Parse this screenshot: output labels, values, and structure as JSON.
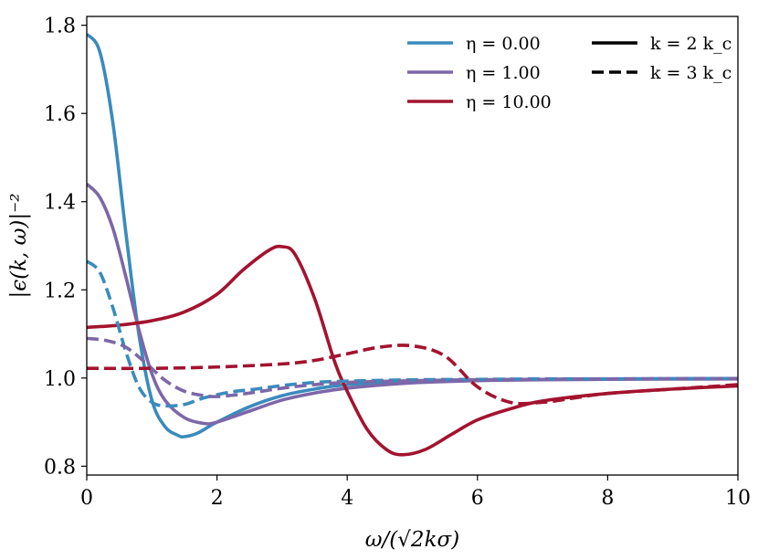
{
  "chart_data": {
    "type": "line",
    "title": "",
    "xlabel": "ω/(√2kσ)",
    "ylabel": "|ϵ(k, ω)|⁻²",
    "xlim": [
      0,
      10
    ],
    "ylim": [
      0.78,
      1.82
    ],
    "xticks": [
      0,
      2,
      4,
      6,
      8,
      10
    ],
    "xtick_labels": [
      "0",
      "2",
      "4",
      "6",
      "8",
      "10"
    ],
    "yticks": [
      0.8,
      1.0,
      1.2,
      1.4,
      1.6,
      1.8
    ],
    "ytick_labels": [
      "0.8",
      "1.0",
      "1.2",
      "1.4",
      "1.6",
      "1.8"
    ],
    "grid": false,
    "legend": {
      "placement": "top-right",
      "eta_entries": [
        {
          "label": "η = 0.00",
          "color": "#3a8bbd"
        },
        {
          "label": "η = 1.00",
          "color": "#7c67a8"
        },
        {
          "label": "η = 10.00",
          "color": "#a3132f"
        }
      ],
      "k_entries": [
        {
          "label": "k = 2 k_c",
          "style": "solid"
        },
        {
          "label": "k = 3 k_c",
          "style": "dashed"
        }
      ]
    },
    "series": [
      {
        "name": "η = 0.00, k = 2 k_c",
        "color": "#3a8bbd",
        "style": "solid",
        "x": [
          0,
          0.2,
          0.4,
          0.6,
          0.8,
          1.0,
          1.2,
          1.4,
          1.5,
          1.7,
          2.0,
          2.5,
          3.0,
          3.5,
          4.0,
          5.0,
          6.0,
          7.0,
          8.0,
          10.0
        ],
        "y": [
          1.78,
          1.74,
          1.58,
          1.33,
          1.1,
          0.95,
          0.89,
          0.87,
          0.867,
          0.875,
          0.9,
          0.935,
          0.96,
          0.975,
          0.985,
          0.993,
          0.996,
          0.997,
          0.998,
          0.999
        ]
      },
      {
        "name": "η = 1.00, k = 2 k_c",
        "color": "#7c67a8",
        "style": "solid",
        "x": [
          0,
          0.2,
          0.4,
          0.6,
          0.8,
          1.0,
          1.2,
          1.5,
          1.8,
          2.0,
          2.5,
          3.0,
          3.5,
          4.0,
          5.0,
          6.0,
          7.0,
          8.0,
          10.0
        ],
        "y": [
          1.44,
          1.41,
          1.34,
          1.23,
          1.11,
          1.01,
          0.95,
          0.91,
          0.897,
          0.9,
          0.925,
          0.95,
          0.966,
          0.977,
          0.989,
          0.994,
          0.996,
          0.997,
          0.998
        ]
      },
      {
        "name": "η = 10.00, k = 2 k_c",
        "color": "#a3132f",
        "style": "solid",
        "x": [
          0,
          0.5,
          1.0,
          1.5,
          2.0,
          2.4,
          2.8,
          3.0,
          3.2,
          3.5,
          3.8,
          4.0,
          4.3,
          4.6,
          4.85,
          5.2,
          5.6,
          6.0,
          6.5,
          7.0,
          8.0,
          9.0,
          10.0
        ],
        "y": [
          1.115,
          1.12,
          1.13,
          1.15,
          1.19,
          1.245,
          1.29,
          1.298,
          1.28,
          1.18,
          1.04,
          0.97,
          0.885,
          0.838,
          0.826,
          0.838,
          0.872,
          0.905,
          0.93,
          0.948,
          0.965,
          0.975,
          0.982
        ]
      },
      {
        "name": "η = 0.00, k = 3 k_c",
        "color": "#3a8bbd",
        "style": "dashed",
        "x": [
          0,
          0.2,
          0.4,
          0.6,
          0.8,
          1.0,
          1.2,
          1.5,
          1.8,
          2.2,
          2.6,
          3.0,
          3.5,
          4.0,
          5.0,
          6.0,
          7.0,
          8.0,
          10.0
        ],
        "y": [
          1.265,
          1.24,
          1.16,
          1.06,
          0.98,
          0.945,
          0.937,
          0.94,
          0.955,
          0.968,
          0.975,
          0.983,
          0.99,
          0.993,
          0.996,
          0.997,
          0.998,
          0.998,
          0.999
        ]
      },
      {
        "name": "η = 1.00, k = 3 k_c",
        "color": "#7c67a8",
        "style": "dashed",
        "x": [
          0,
          0.3,
          0.6,
          0.9,
          1.2,
          1.5,
          1.8,
          2.0,
          2.3,
          2.6,
          3.0,
          3.5,
          4.0,
          5.0,
          6.0,
          7.0,
          8.0,
          10.0
        ],
        "y": [
          1.09,
          1.085,
          1.07,
          1.035,
          0.995,
          0.97,
          0.96,
          0.958,
          0.962,
          0.968,
          0.977,
          0.985,
          0.99,
          0.994,
          0.996,
          0.997,
          0.998,
          0.999
        ]
      },
      {
        "name": "η = 10.00, k = 3 k_c",
        "color": "#a3132f",
        "style": "dashed",
        "x": [
          0,
          1.0,
          2.0,
          3.0,
          3.5,
          4.0,
          4.5,
          5.0,
          5.5,
          6.0,
          6.5,
          7.0,
          7.5,
          8.0,
          9.0,
          10.0
        ],
        "y": [
          1.022,
          1.022,
          1.025,
          1.032,
          1.04,
          1.055,
          1.07,
          1.073,
          1.05,
          0.98,
          0.945,
          0.945,
          0.955,
          0.965,
          0.975,
          0.985
        ]
      }
    ]
  }
}
